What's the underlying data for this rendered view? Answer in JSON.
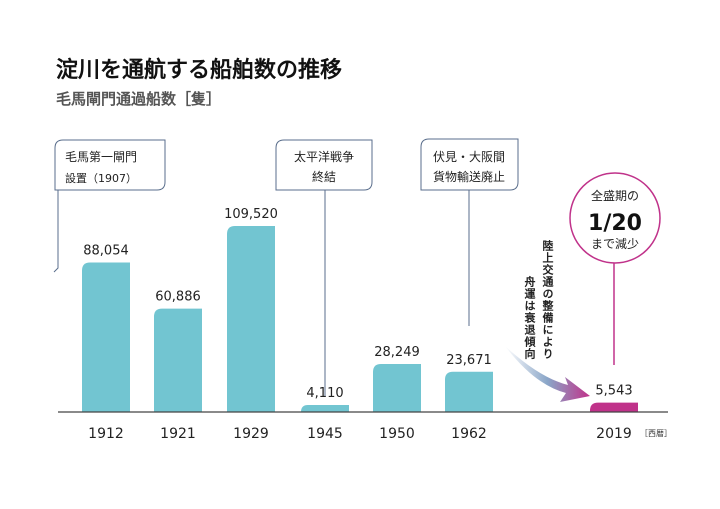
{
  "chart_data": {
    "type": "bar",
    "title": "淀川を通航する船舶数の推移",
    "subtitle": "毛馬閘門通過船数［隻］",
    "categories": [
      "1912",
      "1921",
      "1929",
      "1945",
      "1950",
      "1962",
      "2019"
    ],
    "values": [
      88054,
      60886,
      109520,
      4110,
      28249,
      23671,
      5543
    ],
    "value_labels": [
      "88,054",
      "60,886",
      "109,520",
      "4,110",
      "28,249",
      "23,671",
      "5,543"
    ],
    "x_unit": "［西暦］",
    "ylim": [
      0,
      109520
    ],
    "grid": false,
    "colors": {
      "bar": "#72c5d1",
      "highlight": "#c0328a",
      "callout": "#5a6e8c"
    },
    "annotations": [
      {
        "category": "1912",
        "lines": [
          "毛馬第一閘門",
          "設置（1907）"
        ]
      },
      {
        "category": "1945",
        "lines": [
          "太平洋戦争",
          "終結"
        ]
      },
      {
        "category": "1962",
        "lines": [
          "伏見・大阪間",
          "貨物輸送廃止"
        ]
      },
      {
        "category": "2019",
        "lines": [
          "全盛期の",
          "1/20",
          "まで減少"
        ]
      }
    ],
    "trend_note": [
      "陸上交通の整備により",
      "舟運は衰退傾向"
    ]
  }
}
